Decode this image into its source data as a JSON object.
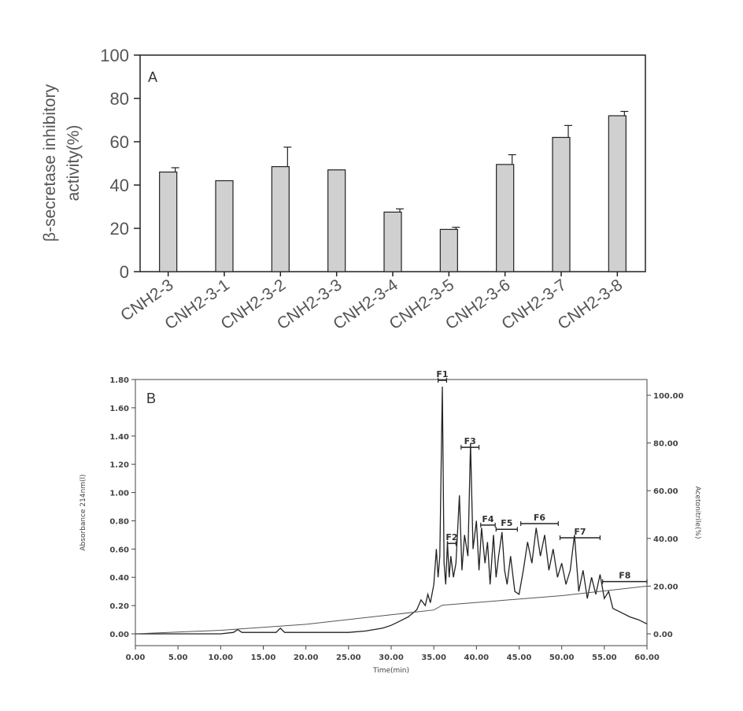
{
  "chart_data": [
    {
      "type": "bar",
      "panel_label": "A",
      "title": "",
      "xlabel": "",
      "ylabel_line1": "β-secretase inhibitory",
      "ylabel_line2": "activity(%)",
      "ylim": [
        0,
        100
      ],
      "yticks": [
        "0",
        "20",
        "40",
        "60",
        "80",
        "100"
      ],
      "categories": [
        "CNH2-3",
        "CNH2-3-1",
        "CNH2-3-2",
        "CNH2-3-3",
        "CNH2-3-4",
        "CNH2-3-5",
        "CNH2-3-6",
        "CNH2-3-7",
        "CNH2-3-8"
      ],
      "values": [
        46,
        42,
        48.5,
        47,
        27.5,
        19.5,
        49.5,
        62,
        72
      ],
      "errors": [
        2,
        0,
        9,
        0,
        1.5,
        1,
        4.5,
        5.5,
        2
      ],
      "bar_color": "#d0d0d0",
      "grid": false,
      "legend": "none"
    },
    {
      "type": "line",
      "panel_label": "B",
      "title": "",
      "xlabel": "Time(min)",
      "ylabel_left": "Absorbance 214nm(l)",
      "ylabel_right": "Acetonitrile(%)",
      "xlim": [
        0,
        60
      ],
      "ylim_left": [
        0,
        1.8
      ],
      "ylim_right": [
        -5,
        105
      ],
      "xticks": [
        "0.00",
        "5.00",
        "10.00",
        "15.00",
        "20.00",
        "25.00",
        "30.00",
        "35.00",
        "40.00",
        "45.00",
        "50.00",
        "55.00",
        "60.00"
      ],
      "yticks_left": [
        "0.00",
        "0.20",
        "0.40",
        "0.60",
        "0.80",
        "1.00",
        "1.20",
        "1.40",
        "1.60",
        "1.80"
      ],
      "yticks_right": [
        "0.00",
        "20.00",
        "40.00",
        "60.00",
        "80.00",
        "100.00"
      ],
      "series": [
        {
          "axis": "left",
          "x": [
            0,
            5,
            10,
            11.5,
            12,
            12.5,
            14,
            16.5,
            17,
            17.5,
            20,
            25,
            27,
            29,
            30,
            31,
            32,
            33,
            33.5,
            34,
            34.3,
            34.6,
            35,
            35.3,
            35.5,
            35.7,
            36,
            36.2,
            36.4,
            36.6,
            36.8,
            37,
            37.3,
            37.6,
            38,
            38.3,
            38.6,
            39,
            39.3,
            39.6,
            40,
            40.3,
            40.6,
            41,
            41.3,
            41.6,
            42,
            42.3,
            42.6,
            43,
            43.3,
            43.6,
            44,
            44.5,
            45,
            45.5,
            46,
            46.5,
            47,
            47.5,
            48,
            48.5,
            49,
            49.5,
            50,
            50.5,
            51,
            51.5,
            52,
            52.5,
            53,
            53.5,
            54,
            54.5,
            55,
            55.5,
            56,
            57,
            58,
            59,
            60
          ],
          "values": [
            0,
            0,
            0,
            0.01,
            0.03,
            0.01,
            0.01,
            0.01,
            0.04,
            0.01,
            0.01,
            0.01,
            0.02,
            0.04,
            0.06,
            0.09,
            0.12,
            0.17,
            0.24,
            0.2,
            0.28,
            0.22,
            0.35,
            0.6,
            0.4,
            0.55,
            1.75,
            0.5,
            0.35,
            0.65,
            0.4,
            0.55,
            0.4,
            0.5,
            0.98,
            0.45,
            0.7,
            0.55,
            1.35,
            0.6,
            0.8,
            0.45,
            0.75,
            0.5,
            0.65,
            0.35,
            0.7,
            0.4,
            0.55,
            0.72,
            0.45,
            0.35,
            0.55,
            0.3,
            0.28,
            0.45,
            0.65,
            0.5,
            0.75,
            0.55,
            0.7,
            0.45,
            0.6,
            0.4,
            0.5,
            0.35,
            0.45,
            0.7,
            0.3,
            0.45,
            0.25,
            0.4,
            0.28,
            0.42,
            0.25,
            0.3,
            0.18,
            0.15,
            0.12,
            0.1,
            0.07
          ]
        },
        {
          "axis": "right",
          "x": [
            0,
            10,
            20,
            30,
            35,
            36,
            50,
            55,
            60
          ],
          "values": [
            0,
            1.5,
            4,
            8,
            10,
            12,
            16,
            18,
            20
          ]
        }
      ],
      "fractions": [
        {
          "label": "F1",
          "start": 35.5,
          "end": 36.5,
          "level": 1.8
        },
        {
          "label": "F2",
          "start": 36.6,
          "end": 37.6,
          "level": 0.64
        },
        {
          "label": "F3",
          "start": 38.2,
          "end": 40.3,
          "level": 1.32
        },
        {
          "label": "F4",
          "start": 40.5,
          "end": 42.2,
          "level": 0.77
        },
        {
          "label": "F5",
          "start": 42.3,
          "end": 44.8,
          "level": 0.74
        },
        {
          "label": "F6",
          "start": 45.2,
          "end": 49.6,
          "level": 0.78
        },
        {
          "label": "F7",
          "start": 49.8,
          "end": 54.5,
          "level": 0.68
        },
        {
          "label": "F8",
          "start": 54.8,
          "end": 60,
          "level": 0.37
        }
      ],
      "grid": false,
      "legend": "none"
    }
  ]
}
